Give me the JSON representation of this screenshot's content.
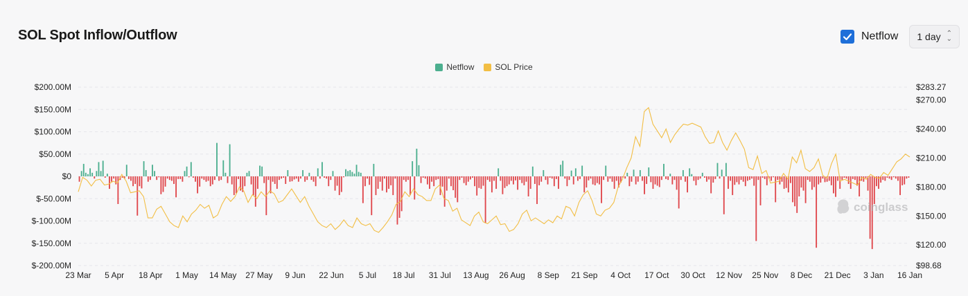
{
  "header": {
    "title": "SOL Spot Inflow/Outflow",
    "netflow_toggle_label": "Netflow",
    "netflow_checked": true,
    "interval_value": "1 day"
  },
  "watermark": "coinglass",
  "colors": {
    "positive": "#4caf8f",
    "negative": "#e0474c",
    "price": "#f2be44",
    "accent": "#1e6fd9"
  },
  "chart_data": {
    "type": "bar",
    "title": "SOL Spot Inflow/Outflow",
    "legend": [
      "Netflow",
      "SOL Price"
    ],
    "legend_placement": "top-center",
    "grid": true,
    "y_left": {
      "ylim": [
        -200,
        200
      ],
      "unit": "M USD",
      "tick_labels": [
        "$200.00M",
        "$150.00M",
        "$100.00M",
        "$50.00M",
        "$0",
        "$-50.00M",
        "$-100.00M",
        "$-150.00M",
        "$-200.00M"
      ],
      "tick_values": [
        200,
        150,
        100,
        50,
        0,
        -50,
        -100,
        -150,
        -200
      ]
    },
    "y_right": {
      "ylim": [
        98.68,
        283.27
      ],
      "tick_labels": [
        "$283.27",
        "$270.00",
        "$240.00",
        "$210.00",
        "$180.00",
        "$150.00",
        "$120.00",
        "$98.68"
      ],
      "tick_values": [
        283.27,
        270,
        240,
        210,
        180,
        150,
        120,
        98.68
      ]
    },
    "x_tick_labels": [
      "23 Mar",
      "5 Apr",
      "18 Apr",
      "1 May",
      "14 May",
      "27 May",
      "9 Jun",
      "22 Jun",
      "5 Jul",
      "18 Jul",
      "31 Jul",
      "13 Aug",
      "26 Aug",
      "8 Sep",
      "21 Sep",
      "4 Oct",
      "17 Oct",
      "30 Oct",
      "12 Nov",
      "25 Nov",
      "8 Dec",
      "21 Dec",
      "3 Jan",
      "16 Jan"
    ],
    "series": [
      {
        "name": "Netflow",
        "unit": "M USD",
        "values": [
          -12,
          12,
          28,
          8,
          5,
          18,
          8,
          -5,
          12,
          32,
          12,
          35,
          -3,
          6,
          -28,
          -12,
          -5,
          -18,
          -62,
          -8,
          -3,
          -5,
          26,
          -6,
          -10,
          -22,
          -17,
          -88,
          -22,
          -27,
          34,
          14,
          -12,
          -8,
          26,
          12,
          -8,
          -2,
          -40,
          -35,
          -23,
          -5,
          -8,
          -10,
          -17,
          -47,
          -6,
          -6,
          -12,
          12,
          22,
          -2,
          32,
          -3,
          -12,
          -38,
          -23,
          -5,
          -8,
          -12,
          -10,
          -22,
          -18,
          -8,
          75,
          -10,
          -8,
          36,
          8,
          -15,
          72,
          -18,
          -42,
          -38,
          -6,
          -32,
          -35,
          -22,
          8,
          12,
          -18,
          -42,
          -68,
          -28,
          24,
          22,
          -15,
          -87,
          -8,
          -38,
          -12,
          -17,
          -28,
          -8,
          -5,
          -3,
          -17,
          14,
          -12,
          -11,
          -7,
          -5,
          -12,
          -5,
          14,
          -12,
          -8,
          8,
          -8,
          -12,
          -22,
          18,
          -5,
          32,
          -3,
          -5,
          -22,
          -8,
          12,
          -32,
          -21,
          -42,
          -35,
          -2,
          16,
          12,
          14,
          10,
          6,
          26,
          10,
          8,
          -60,
          -22,
          -5,
          -19,
          -87,
          28,
          -42,
          -28,
          -12,
          -32,
          -5,
          -36,
          -28,
          -20,
          -42,
          -5,
          -108,
          -93,
          -78,
          -8,
          -12,
          -8,
          -42,
          34,
          -52,
          62,
          25,
          -15,
          -3,
          -5,
          -18,
          -28,
          -12,
          -22,
          -8,
          -6,
          -42,
          -23,
          -68,
          -32,
          -5,
          -22,
          -31,
          -48,
          -58,
          -8,
          -3,
          -15,
          -20,
          -12,
          -7,
          -3,
          -22,
          -43,
          -26,
          -28,
          -21,
          -105,
          -8,
          -12,
          -36,
          -10,
          -28,
          18,
          -10,
          -40,
          -26,
          -22,
          -18,
          -10,
          -18,
          -9,
          -30,
          -8,
          -15,
          -20,
          -12,
          -45,
          -28,
          22,
          -17,
          -62,
          -20,
          -12,
          14,
          -8,
          -18,
          -3,
          -5,
          -22,
          -6,
          -28,
          26,
          35,
          -5,
          -22,
          -8,
          13,
          -18,
          18,
          -10,
          -6,
          24,
          -36,
          -25,
          -9,
          -5,
          -18,
          -20,
          -15,
          -18,
          -60,
          -8,
          24,
          -12,
          -5,
          -12,
          -28,
          -10,
          -25,
          -14,
          -3,
          -5,
          8,
          -22,
          -12,
          15,
          -18,
          -12,
          14,
          -10,
          -40,
          -17,
          20,
          -13,
          -28,
          -18,
          -21,
          -24,
          -8,
          28,
          -6,
          -8,
          6,
          -18,
          -8,
          -30,
          -72,
          -8,
          14,
          -12,
          -36,
          18,
          5,
          -10,
          -20,
          -8,
          -5,
          8,
          -3,
          -12,
          -7,
          -38,
          -14,
          -6,
          30,
          -5,
          15,
          -85,
          30,
          -28,
          -10,
          -42,
          -19,
          -13,
          -18,
          -8,
          -12,
          -22,
          -10,
          -8,
          -5,
          -21,
          -145,
          -8,
          -65,
          -3,
          -6,
          -20,
          -5,
          -10,
          -2,
          -58,
          -8,
          -18,
          -12,
          -28,
          -26,
          -36,
          -15,
          -58,
          -67,
          -82,
          -45,
          -25,
          -32,
          -60,
          -8,
          -12,
          -30,
          -24,
          -160,
          -18,
          -14,
          -5,
          -13,
          -12,
          -10,
          -20,
          -38,
          -46,
          -10,
          -28,
          -8,
          -3,
          -5,
          -17,
          -28,
          -6,
          -8,
          -21,
          -45,
          -10,
          -12,
          -4,
          -32,
          -140,
          -163,
          -62,
          -22,
          -28,
          -14,
          -8,
          -10,
          -3,
          -5,
          -8,
          -2,
          -5,
          -10,
          -42,
          -20,
          -18,
          -5,
          -3
        ],
        "color_rule": "green when >= 0, red when < 0"
      },
      {
        "name": "SOL Price",
        "unit": "USD",
        "values": [
          175,
          190,
          187,
          181,
          187,
          188,
          182,
          183,
          186,
          184,
          193,
          186,
          174,
          175,
          176,
          170,
          148,
          148,
          157,
          160,
          152,
          144,
          140,
          138,
          150,
          144,
          152,
          156,
          162,
          158,
          161,
          148,
          151,
          162,
          170,
          165,
          170,
          180,
          176,
          164,
          172,
          168,
          175,
          170,
          176,
          173,
          164,
          166,
          172,
          178,
          171,
          164,
          170,
          160,
          152,
          144,
          140,
          138,
          142,
          136,
          140,
          146,
          140,
          138,
          148,
          142,
          140,
          142,
          135,
          133,
          138,
          144,
          151,
          162,
          165,
          175,
          170,
          178,
          172,
          170,
          166,
          166,
          178,
          182,
          168,
          166,
          155,
          158,
          146,
          143,
          140,
          150,
          154,
          144,
          142,
          146,
          150,
          141,
          142,
          134,
          136,
          142,
          152,
          156,
          145,
          148,
          145,
          142,
          146,
          143,
          150,
          147,
          160,
          158,
          150,
          164,
          172,
          176,
          166,
          152,
          150,
          156,
          158,
          164,
          180,
          188,
          200,
          210,
          232,
          222,
          258,
          262,
          245,
          238,
          231,
          240,
          226,
          234,
          240,
          245,
          244,
          246,
          244,
          242,
          232,
          225,
          226,
          238,
          226,
          218,
          228,
          236,
          228,
          219,
          200,
          198,
          212,
          194,
          197,
          184,
          185,
          186,
          194,
          188,
          211,
          205,
          218,
          199,
          196,
          200,
          209,
          192,
          189,
          204,
          214,
          186,
          188,
          186,
          184,
          182,
          190,
          188,
          193,
          190,
          189,
          195,
          192,
          199,
          206,
          209,
          214,
          211
        ],
        "note": "sampled smoothly along x"
      }
    ]
  }
}
